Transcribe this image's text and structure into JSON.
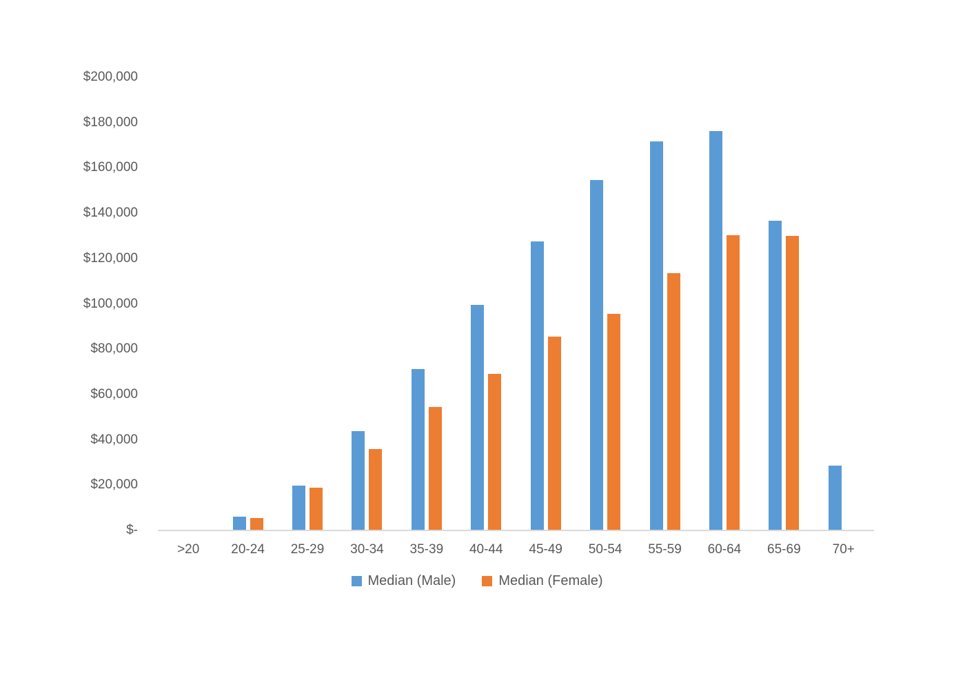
{
  "chart_data": {
    "type": "bar",
    "title": "",
    "categories": [
      ">20",
      "20-24",
      "25-29",
      "30-34",
      "35-39",
      "40-44",
      "45-49",
      "50-54",
      "55-59",
      "60-64",
      "65-69",
      "70+"
    ],
    "series": [
      {
        "name": "Median (Male)",
        "color": "#5B9BD5",
        "values": [
          400,
          6100,
          19900,
          43700,
          71200,
          99400,
          127500,
          154600,
          171700,
          176400,
          136800,
          28600
        ]
      },
      {
        "name": "Median (Female)",
        "color": "#ED7D31",
        "values": [
          300,
          5600,
          19000,
          36000,
          54600,
          69000,
          85600,
          95700,
          113400,
          130400,
          130000,
          0
        ]
      }
    ],
    "ylim": [
      0,
      200000
    ],
    "ytick_step": 20000,
    "ytick_labels": [
      "$-",
      "$20,000",
      "$40,000",
      "$60,000",
      "$80,000",
      "$100,000",
      "$120,000",
      "$140,000",
      "$160,000",
      "$180,000",
      "$200,000"
    ],
    "xlabel": "",
    "ylabel": "",
    "grid": false,
    "legend_position": "bottom"
  },
  "colors": {
    "axis_line": "#D9D9D9",
    "text": "#595959",
    "background": "#FFFFFF"
  }
}
